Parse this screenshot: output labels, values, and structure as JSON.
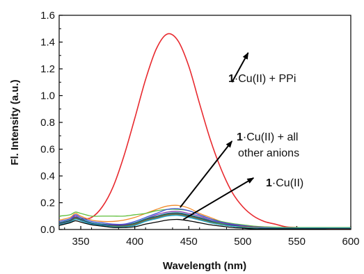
{
  "chart_data": {
    "type": "line",
    "xlabel": "Wavelength (nm)",
    "ylabel": "Fl. Intensity (a.u.)",
    "xlim": [
      330,
      600
    ],
    "ylim": [
      0.0,
      1.6
    ],
    "x_ticks": [
      350,
      400,
      450,
      500,
      550,
      600
    ],
    "x_tick_labels": [
      "350",
      "400",
      "450",
      "500",
      "550",
      "600"
    ],
    "y_ticks": [
      0.0,
      0.2,
      0.4,
      0.6,
      0.8,
      1.0,
      1.2,
      1.4,
      1.6
    ],
    "y_tick_labels": [
      "0.0",
      "0.2",
      "0.4",
      "0.6",
      "0.8",
      "1.0",
      "1.2",
      "1.4",
      "1.6"
    ],
    "grid": false,
    "colors": {
      "ppi": "#e8292e",
      "cu": "#000000",
      "orange": "#f28a2a",
      "green": "#5fbf3a",
      "blue": "#3a4fd6",
      "purple": "#8a3ab0",
      "teal": "#1f8f8f",
      "navy": "#1f3a7a",
      "olive": "#7a8a2a",
      "gray": "#606060",
      "cyan": "#2ab0d0"
    },
    "series": [
      {
        "key": "ppi",
        "x": [
          330,
          340,
          345,
          350,
          360,
          370,
          380,
          390,
          400,
          410,
          420,
          430,
          440,
          450,
          460,
          470,
          480,
          490,
          500,
          510,
          520,
          530,
          540,
          550,
          560,
          570,
          580,
          590,
          600
        ],
        "values": [
          0.05,
          0.07,
          0.1,
          0.08,
          0.09,
          0.17,
          0.32,
          0.55,
          0.83,
          1.12,
          1.35,
          1.46,
          1.41,
          1.22,
          0.94,
          0.67,
          0.45,
          0.28,
          0.17,
          0.1,
          0.06,
          0.04,
          0.02,
          0.015,
          0.01,
          0.01,
          0.005,
          0.005,
          0.005
        ]
      },
      {
        "key": "orange",
        "x": [
          330,
          340,
          345,
          350,
          360,
          370,
          380,
          390,
          400,
          410,
          420,
          430,
          440,
          450,
          460,
          470,
          480,
          490,
          500,
          510,
          520,
          540,
          560,
          580,
          600
        ],
        "values": [
          0.07,
          0.09,
          0.12,
          0.1,
          0.07,
          0.06,
          0.06,
          0.07,
          0.09,
          0.12,
          0.15,
          0.175,
          0.18,
          0.16,
          0.12,
          0.09,
          0.06,
          0.045,
          0.03,
          0.02,
          0.015,
          0.01,
          0.01,
          0.01,
          0.01
        ]
      },
      {
        "key": "green",
        "x": [
          330,
          340,
          345,
          350,
          360,
          370,
          380,
          390,
          400,
          410,
          420,
          430,
          440,
          450,
          460,
          470,
          480,
          490,
          500,
          510,
          520,
          540,
          560,
          580,
          600
        ],
        "values": [
          0.1,
          0.11,
          0.13,
          0.12,
          0.1,
          0.1,
          0.1,
          0.1,
          0.11,
          0.12,
          0.14,
          0.15,
          0.15,
          0.14,
          0.11,
          0.08,
          0.06,
          0.045,
          0.035,
          0.025,
          0.02,
          0.015,
          0.015,
          0.015,
          0.015
        ]
      },
      {
        "key": "blue",
        "x": [
          330,
          340,
          345,
          350,
          360,
          370,
          380,
          390,
          400,
          410,
          420,
          430,
          440,
          450,
          460,
          470,
          480,
          490,
          500,
          510,
          520,
          540,
          560,
          580,
          600
        ],
        "values": [
          0.06,
          0.08,
          0.11,
          0.09,
          0.06,
          0.05,
          0.04,
          0.04,
          0.06,
          0.09,
          0.12,
          0.15,
          0.155,
          0.14,
          0.11,
          0.08,
          0.055,
          0.04,
          0.03,
          0.02,
          0.015,
          0.01,
          0.01,
          0.01,
          0.01
        ]
      },
      {
        "key": "purple",
        "x": [
          330,
          340,
          345,
          350,
          360,
          370,
          380,
          390,
          400,
          410,
          420,
          430,
          440,
          450,
          460,
          470,
          480,
          490,
          500,
          510,
          520,
          540,
          560,
          580,
          600
        ],
        "values": [
          0.05,
          0.07,
          0.1,
          0.08,
          0.05,
          0.04,
          0.035,
          0.035,
          0.05,
          0.08,
          0.11,
          0.13,
          0.135,
          0.12,
          0.1,
          0.07,
          0.05,
          0.035,
          0.025,
          0.02,
          0.015,
          0.01,
          0.01,
          0.01,
          0.01
        ]
      },
      {
        "key": "teal",
        "x": [
          330,
          340,
          345,
          350,
          360,
          370,
          380,
          390,
          400,
          410,
          420,
          430,
          440,
          450,
          460,
          470,
          480,
          490,
          500,
          510,
          520,
          540,
          560,
          580,
          600
        ],
        "values": [
          0.05,
          0.07,
          0.09,
          0.08,
          0.05,
          0.04,
          0.03,
          0.03,
          0.05,
          0.08,
          0.1,
          0.12,
          0.125,
          0.11,
          0.09,
          0.065,
          0.045,
          0.03,
          0.02,
          0.015,
          0.01,
          0.01,
          0.01,
          0.01,
          0.01
        ]
      },
      {
        "key": "navy",
        "x": [
          330,
          340,
          345,
          350,
          360,
          370,
          380,
          390,
          400,
          410,
          420,
          430,
          440,
          450,
          460,
          470,
          480,
          490,
          500,
          510,
          520,
          540,
          560,
          580,
          600
        ],
        "values": [
          0.045,
          0.065,
          0.09,
          0.075,
          0.045,
          0.035,
          0.03,
          0.03,
          0.045,
          0.075,
          0.095,
          0.115,
          0.12,
          0.105,
          0.085,
          0.06,
          0.04,
          0.03,
          0.02,
          0.015,
          0.01,
          0.01,
          0.01,
          0.01,
          0.01
        ]
      },
      {
        "key": "olive",
        "x": [
          330,
          340,
          345,
          350,
          360,
          370,
          380,
          390,
          400,
          410,
          420,
          430,
          440,
          450,
          460,
          470,
          480,
          490,
          500,
          510,
          520,
          540,
          560,
          580,
          600
        ],
        "values": [
          0.04,
          0.06,
          0.085,
          0.07,
          0.04,
          0.03,
          0.025,
          0.025,
          0.04,
          0.07,
          0.09,
          0.11,
          0.115,
          0.1,
          0.08,
          0.055,
          0.04,
          0.025,
          0.02,
          0.015,
          0.01,
          0.01,
          0.01,
          0.01,
          0.01
        ]
      },
      {
        "key": "gray",
        "x": [
          330,
          340,
          345,
          350,
          360,
          370,
          380,
          390,
          400,
          410,
          420,
          430,
          440,
          450,
          460,
          470,
          480,
          490,
          500,
          510,
          520,
          540,
          560,
          580,
          600
        ],
        "values": [
          0.04,
          0.06,
          0.08,
          0.07,
          0.04,
          0.03,
          0.02,
          0.02,
          0.035,
          0.065,
          0.085,
          0.105,
          0.11,
          0.095,
          0.075,
          0.05,
          0.035,
          0.025,
          0.015,
          0.01,
          0.01,
          0.01,
          0.01,
          0.01,
          0.01
        ]
      },
      {
        "key": "cyan",
        "x": [
          330,
          340,
          345,
          350,
          360,
          370,
          380,
          390,
          400,
          410,
          420,
          430,
          440,
          450,
          460,
          470,
          480,
          490,
          500,
          510,
          520,
          540,
          560,
          580,
          600
        ],
        "values": [
          0.035,
          0.055,
          0.075,
          0.065,
          0.04,
          0.03,
          0.02,
          0.02,
          0.03,
          0.06,
          0.08,
          0.1,
          0.105,
          0.09,
          0.07,
          0.05,
          0.035,
          0.025,
          0.015,
          0.01,
          0.01,
          0.01,
          0.01,
          0.01,
          0.01
        ]
      },
      {
        "key": "cu",
        "x": [
          330,
          340,
          345,
          350,
          360,
          370,
          380,
          390,
          400,
          410,
          420,
          430,
          440,
          450,
          460,
          470,
          480,
          490,
          500,
          510,
          520,
          540,
          560,
          580,
          600
        ],
        "values": [
          0.03,
          0.05,
          0.065,
          0.055,
          0.035,
          0.025,
          0.015,
          0.015,
          0.02,
          0.04,
          0.055,
          0.07,
          0.075,
          0.065,
          0.05,
          0.035,
          0.025,
          0.015,
          0.01,
          0.005,
          0.005,
          0.005,
          0.005,
          0.005,
          0.005
        ]
      }
    ],
    "annotations": [
      {
        "key": "ppi",
        "bold": "1",
        "text": "·Cu(II) + PPi",
        "arrow_from": [
          490,
          1.1
        ],
        "arrow_to": [
          505,
          1.32
        ]
      },
      {
        "key": "all",
        "bold": "1",
        "line1": "·Cu(II) + all",
        "line2": "other anions",
        "arrow_from": [
          442,
          0.165
        ],
        "arrow_to": [
          490,
          0.66
        ]
      },
      {
        "key": "cu",
        "bold": "1",
        "text": "·Cu(II)",
        "arrow_from": [
          445,
          0.075
        ],
        "arrow_to": [
          510,
          0.385
        ]
      }
    ]
  }
}
